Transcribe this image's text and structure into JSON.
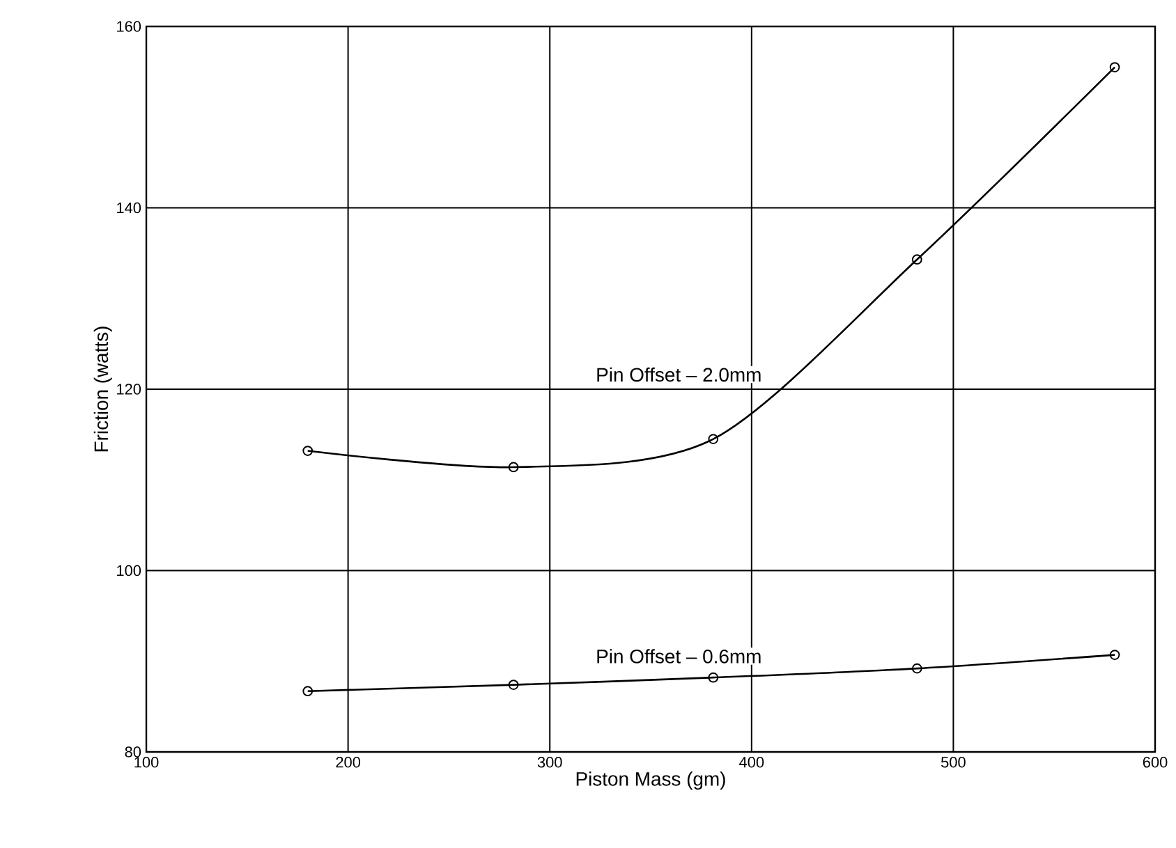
{
  "chart_data": {
    "type": "line",
    "xlabel": "Piston Mass (gm)",
    "ylabel": "Friction (watts)",
    "x": [
      180,
      282,
      381,
      482,
      580
    ],
    "series": [
      {
        "name": "Pin Offset – 2.0mm",
        "color": "#000000",
        "values": [
          113.2,
          111.4,
          114.5,
          134.3,
          155.5
        ]
      },
      {
        "name": "Pin Offset – 0.6mm",
        "color": "#000000",
        "values": [
          86.7,
          87.4,
          88.2,
          89.2,
          90.7
        ]
      }
    ],
    "xlim": [
      100,
      600
    ],
    "xticks": [
      100,
      200,
      300,
      400,
      500,
      600
    ],
    "ylim": [
      80,
      160
    ],
    "yticks": [
      80,
      100,
      120,
      140,
      160
    ],
    "grid": true,
    "marker": "circle",
    "line_style": "solid"
  }
}
